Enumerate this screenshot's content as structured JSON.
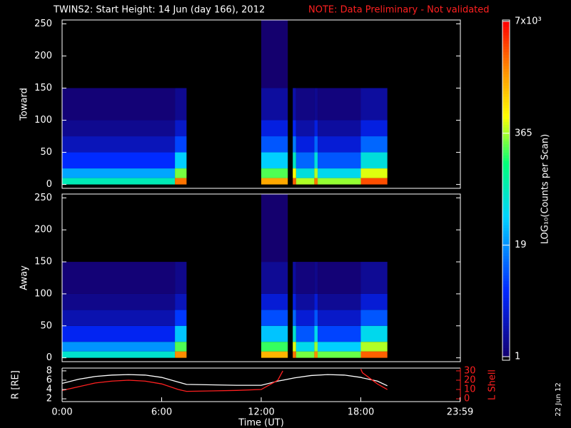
{
  "chart_data": [
    {
      "type": "heatmap",
      "title": "TWINS2: Start Height: 14 Jun (day 166), 2012",
      "note": "NOTE: Data Preliminary - Not validated",
      "ylabel": "Toward",
      "xlim": [
        0,
        24
      ],
      "ylim": [
        -6,
        256
      ],
      "yticks": [
        0,
        50,
        100,
        150,
        200,
        250
      ],
      "x_bins": [
        0,
        6.8,
        7.5,
        12,
        13.6,
        13.9,
        14.1,
        15.2,
        15.4,
        18,
        19.6,
        24
      ],
      "y_bins": [
        0,
        10,
        25,
        50,
        75,
        100,
        150,
        256
      ],
      "z": [
        [
          90,
          2500,
          null,
          1500,
          null,
          3000,
          400,
          2500,
          350,
          3500,
          null
        ],
        [
          25,
          300,
          null,
          250,
          null,
          600,
          60,
          400,
          50,
          500,
          null
        ],
        [
          6,
          40,
          null,
          40,
          null,
          80,
          12,
          60,
          10,
          60,
          null
        ],
        [
          2.5,
          8,
          null,
          10,
          null,
          15,
          4,
          12,
          3.5,
          12,
          null
        ],
        [
          1.5,
          3,
          null,
          4,
          null,
          5,
          2,
          4,
          1.8,
          4,
          null
        ],
        [
          1.1,
          1.5,
          null,
          1.8,
          null,
          2,
          1.3,
          1.5,
          1.2,
          1.8,
          null
        ],
        [
          null,
          null,
          null,
          1,
          null,
          null,
          null,
          null,
          null,
          null,
          null
        ]
      ],
      "colorbar": {
        "label": "LOG₁₀(Counts per Scan)",
        "lim": [
          1,
          7000
        ],
        "log": true,
        "ticks": [
          1,
          19,
          365,
          {
            "value": 7000,
            "label": "7x10³"
          }
        ]
      }
    },
    {
      "type": "heatmap",
      "ylabel": "Away",
      "xlim": [
        0,
        24
      ],
      "ylim": [
        -6,
        256
      ],
      "yticks": [
        0,
        50,
        100,
        150,
        200,
        250
      ],
      "x_bins": [
        0,
        6.8,
        7.5,
        12,
        13.6,
        13.9,
        14.1,
        15.2,
        15.4,
        18,
        19.6,
        24
      ],
      "y_bins": [
        0,
        10,
        25,
        50,
        75,
        100,
        150,
        256
      ],
      "z": [
        [
          70,
          2000,
          null,
          1300,
          null,
          2500,
          300,
          2000,
          280,
          3000,
          null
        ],
        [
          20,
          250,
          null,
          220,
          null,
          500,
          50,
          350,
          40,
          400,
          null
        ],
        [
          5,
          35,
          null,
          35,
          null,
          70,
          10,
          50,
          8,
          50,
          null
        ],
        [
          2.2,
          7,
          null,
          9,
          null,
          12,
          3.5,
          10,
          3,
          10,
          null
        ],
        [
          1.4,
          2.5,
          null,
          3.5,
          null,
          4,
          1.8,
          3.5,
          1.6,
          3.5,
          null
        ],
        [
          1.1,
          1.4,
          null,
          1.6,
          null,
          1.8,
          1.2,
          1.4,
          1.1,
          1.6,
          null
        ],
        [
          null,
          null,
          null,
          1,
          null,
          null,
          null,
          null,
          null,
          null,
          null
        ]
      ]
    },
    {
      "type": "line",
      "xlabel": "Time (UT)",
      "ylabel": "R [RE]",
      "y2label": "L Shell",
      "stamp": "22 Jun 12",
      "xlim": [
        0,
        24
      ],
      "xticks": [
        {
          "value": 0,
          "label": "0:00"
        },
        {
          "value": 6,
          "label": "6:00"
        },
        {
          "value": 12,
          "label": "12:00"
        },
        {
          "value": 18,
          "label": "18:00"
        },
        {
          "value": 23.98,
          "label": "23:59"
        }
      ],
      "ylim": [
        1.4,
        8.6
      ],
      "yticks": [
        2,
        4,
        6,
        8
      ],
      "y2lim": [
        -3,
        33
      ],
      "y2ticks": [
        0,
        10,
        20,
        30
      ],
      "x": [
        0,
        1,
        2,
        3,
        4,
        5,
        6,
        7,
        7.5,
        9,
        10.5,
        12,
        13,
        13.3,
        14,
        15,
        16,
        17,
        18,
        18.1,
        19,
        19.6
      ],
      "series": [
        {
          "color": "#ffffff",
          "values": [
            5.3,
            6.2,
            6.8,
            7.1,
            7.2,
            7.1,
            6.6,
            5.6,
            5.1,
            5.0,
            4.9,
            4.9,
            5.8,
            6.0,
            6.5,
            7.0,
            7.2,
            7.1,
            6.6,
            6.5,
            5.8,
            4.8
          ]
        },
        {
          "color": "#ff2020",
          "axis": "y2",
          "values": [
            9,
            13,
            17,
            19,
            20,
            19,
            16,
            10,
            8,
            8.5,
            9,
            10,
            20,
            30,
            null,
            null,
            null,
            null,
            32,
            28,
            16,
            10
          ]
        }
      ]
    }
  ]
}
